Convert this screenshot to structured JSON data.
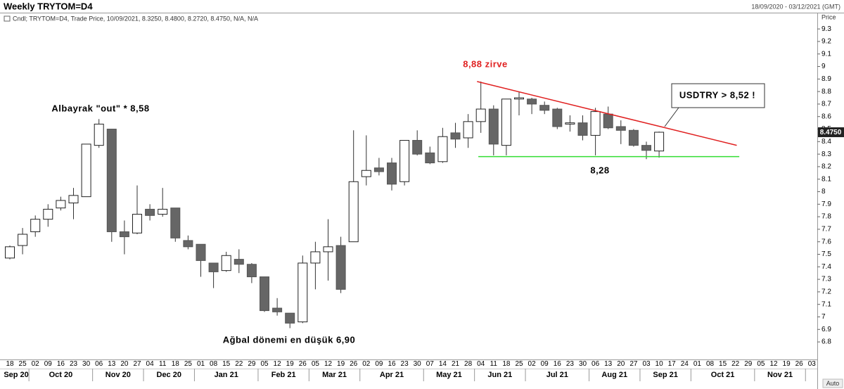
{
  "chart_data": {
    "type": "candlestick",
    "title": "Weekly TRYTOM=D4",
    "date_range": "18/09/2020 - 03/12/2021 (GMT)",
    "info": "Cndl; TRYTOM=D4, Trade Price, 10/09/2021, 8.3250, 8.4800, 8.2720, 8.4750, N/A, N/A",
    "y_axis_label": "Price",
    "scale_mode": "Auto",
    "categories": [
      "18",
      "25",
      "02",
      "09",
      "16",
      "23",
      "30",
      "06",
      "13",
      "20",
      "27",
      "04",
      "11",
      "18",
      "25",
      "01",
      "08",
      "15",
      "22",
      "29",
      "05",
      "12",
      "19",
      "26",
      "05",
      "12",
      "19",
      "26",
      "02",
      "09",
      "16",
      "23",
      "30",
      "07",
      "14",
      "21",
      "28",
      "04",
      "11",
      "18",
      "25",
      "02",
      "09",
      "16",
      "23",
      "30",
      "06",
      "13",
      "20",
      "27",
      "03",
      "10",
      "17",
      "24",
      "01",
      "08",
      "15",
      "22",
      "29",
      "05",
      "12",
      "19",
      "26",
      "03"
    ],
    "months": [
      "Sep 20",
      "Oct 20",
      "Nov 20",
      "Dec 20",
      "Jan 21",
      "Feb 21",
      "Mar 21",
      "Apr 21",
      "May 21",
      "Jun 21",
      "Jul 21",
      "Aug 21",
      "Sep 21",
      "Oct 21",
      "Nov 21"
    ],
    "open": [
      7.47,
      7.57,
      7.68,
      7.78,
      7.87,
      7.91,
      7.96,
      8.37,
      8.5,
      7.68,
      7.67,
      7.86,
      7.82,
      7.87,
      7.61,
      7.58,
      7.43,
      7.37,
      7.46,
      7.42,
      7.32,
      7.07,
      7.03,
      6.96,
      7.43,
      7.52,
      7.57,
      7.6,
      8.12,
      8.19,
      8.23,
      8.08,
      8.41,
      8.31,
      8.24,
      8.47,
      8.43,
      8.56,
      8.66,
      8.37,
      8.74,
      8.74,
      8.69,
      8.66,
      8.54,
      8.55,
      8.45,
      8.62,
      8.52,
      8.49,
      8.37,
      8.325,
      null,
      null,
      null,
      null,
      null,
      null,
      null,
      null,
      null,
      null,
      null,
      null
    ],
    "high": [
      7.57,
      7.71,
      7.81,
      7.9,
      7.96,
      8.03,
      8.38,
      8.58,
      8.5,
      7.77,
      8.05,
      7.9,
      8.03,
      7.87,
      7.65,
      7.58,
      7.43,
      7.52,
      7.54,
      7.43,
      7.32,
      7.15,
      7.03,
      7.49,
      7.6,
      7.78,
      7.64,
      8.49,
      8.45,
      8.27,
      8.27,
      8.41,
      8.49,
      8.36,
      8.51,
      8.55,
      8.62,
      8.88,
      8.69,
      8.74,
      8.8,
      8.75,
      8.72,
      8.67,
      8.61,
      8.61,
      8.67,
      8.68,
      8.57,
      8.5,
      8.4,
      8.48,
      null,
      null,
      null,
      null,
      null,
      null,
      null,
      null,
      null,
      null,
      null,
      null
    ],
    "low": [
      7.46,
      7.5,
      7.64,
      7.72,
      7.85,
      7.78,
      7.96,
      8.35,
      7.6,
      7.5,
      7.66,
      7.77,
      7.8,
      7.6,
      7.54,
      7.32,
      7.23,
      7.36,
      7.35,
      7.27,
      7.04,
      7.01,
      6.91,
      6.95,
      7.22,
      7.29,
      7.19,
      7.6,
      8.05,
      8.13,
      8.01,
      8.05,
      8.29,
      8.22,
      8.23,
      8.35,
      8.35,
      8.47,
      8.29,
      8.29,
      8.61,
      8.62,
      8.62,
      8.5,
      8.48,
      8.41,
      8.29,
      8.5,
      8.38,
      8.36,
      8.26,
      8.272,
      null,
      null,
      null,
      null,
      null,
      null,
      null,
      null,
      null,
      null,
      null,
      null
    ],
    "close": [
      7.56,
      7.66,
      7.78,
      7.86,
      7.93,
      7.97,
      8.38,
      8.54,
      7.68,
      7.64,
      7.82,
      7.81,
      7.86,
      7.63,
      7.56,
      7.45,
      7.36,
      7.49,
      7.42,
      7.32,
      7.05,
      7.04,
      6.95,
      7.43,
      7.52,
      7.56,
      7.22,
      8.08,
      8.17,
      8.16,
      8.06,
      8.41,
      8.3,
      8.23,
      8.44,
      8.42,
      8.56,
      8.66,
      8.38,
      8.74,
      8.75,
      8.7,
      8.65,
      8.52,
      8.55,
      8.45,
      8.64,
      8.51,
      8.49,
      8.37,
      8.33,
      8.475,
      null,
      null,
      null,
      null,
      null,
      null,
      null,
      null,
      null,
      null,
      null,
      null
    ],
    "up_color": "#ffffff",
    "down_color": "#666666",
    "ylim": [
      6.66,
      9.43
    ],
    "yticks": [
      6.8,
      6.9,
      7,
      7.1,
      7.2,
      7.3,
      7.4,
      7.5,
      7.6,
      7.7,
      7.8,
      7.9,
      8,
      8.1,
      8.2,
      8.3,
      8.4,
      8.5,
      8.6,
      8.7,
      8.8,
      8.9,
      9,
      9.1,
      9.2,
      9.3
    ],
    "last_price": {
      "value": 8.475,
      "label": "8.4750"
    },
    "trendlines": [
      {
        "color": "#e02020",
        "x": [
          36.7,
          57.1
        ],
        "y": [
          8.88,
          8.37
        ]
      },
      {
        "color": "#33dd33",
        "x": [
          36.8,
          57.3
        ],
        "y": [
          8.28,
          8.28
        ]
      }
    ],
    "annotations": [
      "8,88 zirve",
      "Albayrak \"out\" * 8,58",
      "Ağbal dönemi en düşük 6,90",
      "8,28",
      "USDTRY > 8,52 !"
    ]
  }
}
